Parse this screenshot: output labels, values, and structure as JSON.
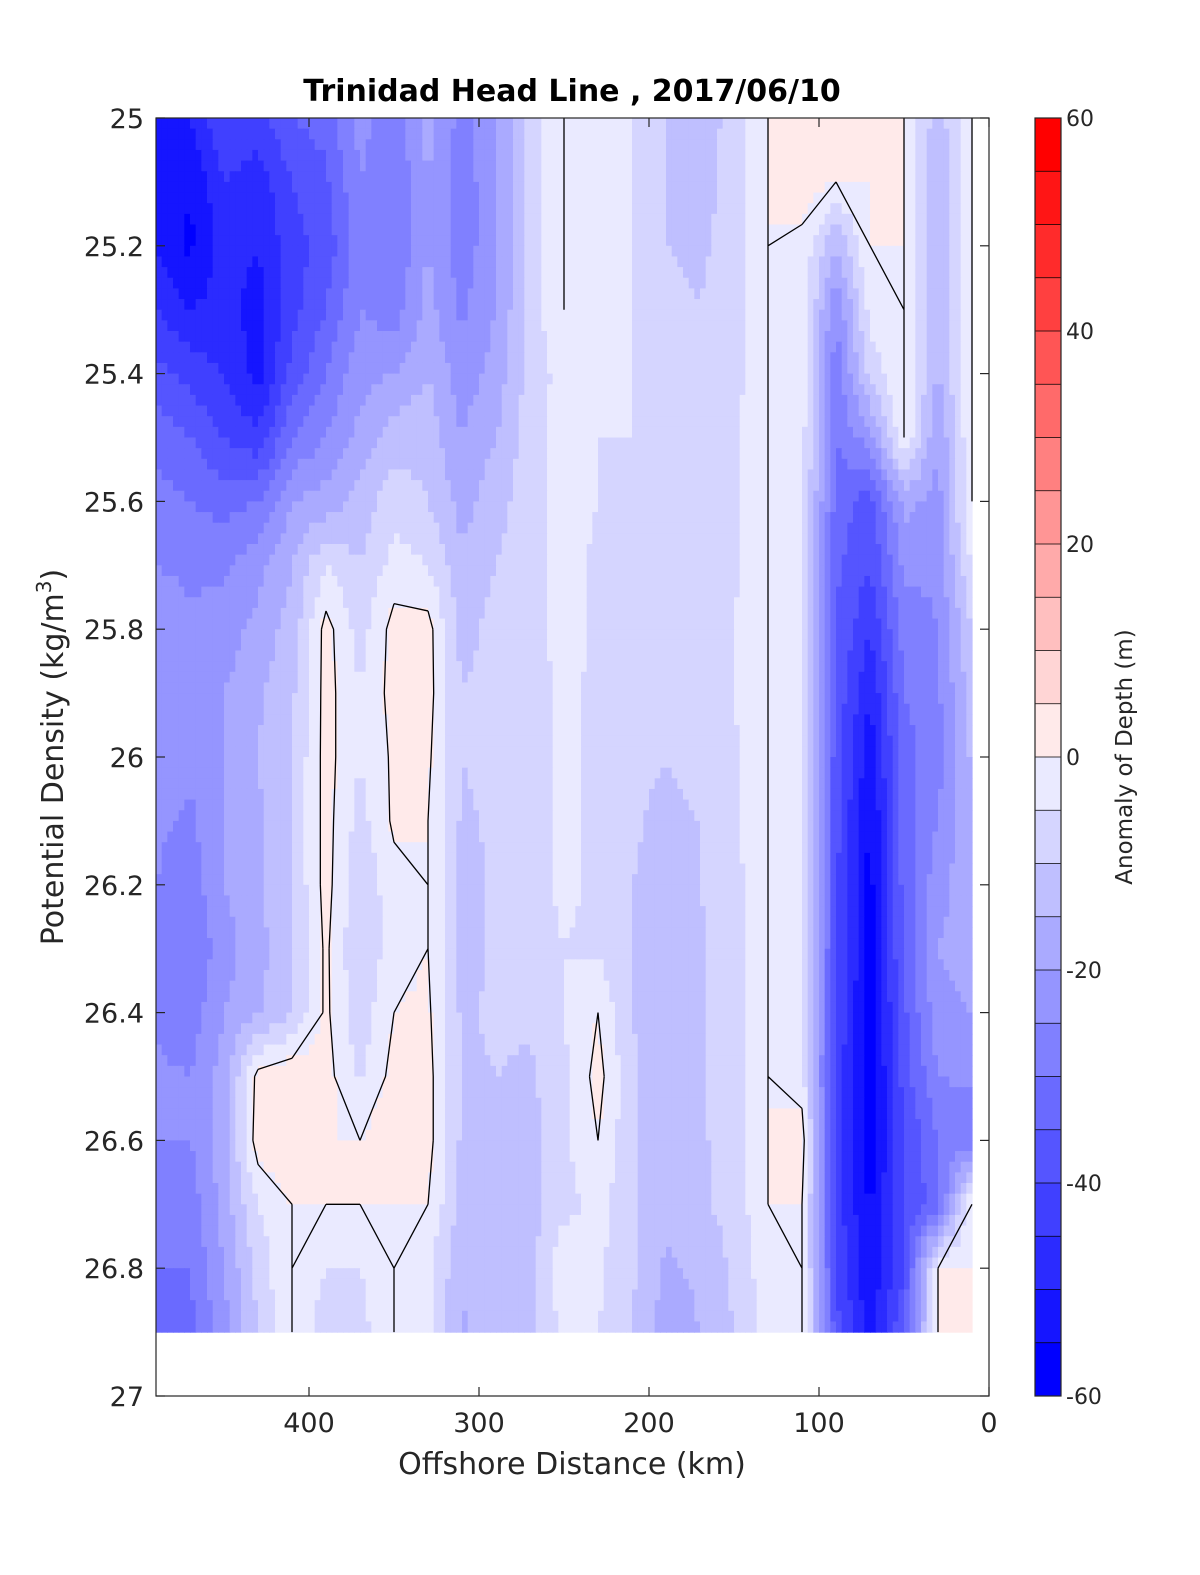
{
  "chart_data": {
    "type": "heatmap",
    "subtype": "filled contour section",
    "title": "Trinidad Head Line , 2017/06/10",
    "xlabel": "Offshore Distance (km)",
    "ylabel_main": "Potential Density (kg/m",
    "ylabel_sup": "3",
    "ylabel_close": ")",
    "xlim": [
      490,
      0
    ],
    "x_reversed": true,
    "ylim": [
      25,
      27
    ],
    "y_reversed": true,
    "x_ticks": [
      400,
      300,
      200,
      100,
      0
    ],
    "x_tick_labels": [
      "400",
      "300",
      "200",
      "100",
      "0"
    ],
    "y_ticks": [
      25,
      25.2,
      25.4,
      25.6,
      25.8,
      26,
      26.2,
      26.4,
      26.6,
      26.8,
      27
    ],
    "y_tick_labels": [
      "25",
      "25.2",
      "25.4",
      "25.6",
      "25.8",
      "26",
      "26.2",
      "26.4",
      "26.6",
      "26.8",
      "27"
    ],
    "data_max_density": 26.9,
    "colorbar": {
      "label": "Anomaly of Depth (m)",
      "range": [
        -60,
        60
      ],
      "step": 5,
      "ticks": [
        60,
        40,
        20,
        0,
        -20,
        -40,
        -60
      ],
      "tick_labels": [
        "60",
        "40",
        "20",
        "0",
        "-20",
        "-40",
        "-60"
      ],
      "color_min": "#0000ff",
      "color_mid": "#ffffff",
      "color_max": "#ff0000"
    },
    "zero_contour_color": "#000000",
    "distance_km": [
      490,
      470,
      450,
      430,
      410,
      390,
      370,
      350,
      330,
      310,
      290,
      270,
      250,
      230,
      210,
      190,
      170,
      150,
      130,
      110,
      90,
      70,
      50,
      30,
      10
    ],
    "density": [
      25,
      25.1,
      25.2,
      25.3,
      25.4,
      25.5,
      25.6,
      25.7,
      25.8,
      25.9,
      26,
      26.1,
      26.2,
      26.3,
      26.4,
      26.5,
      26.6,
      26.7,
      26.8,
      26.9
    ],
    "anomaly_m": [
      [
        -50,
        -50,
        -40,
        -42,
        -35,
        -33,
        -23,
        -28,
        -18,
        -27,
        -20,
        -8,
        0,
        -3,
        -5,
        -10,
        -13,
        -8,
        0,
        3,
        0,
        0,
        0,
        -13,
        0
      ],
      [
        -50,
        -55,
        -45,
        -48,
        -40,
        -36,
        -25,
        -30,
        -20,
        -28,
        -21,
        -8,
        0,
        -3,
        -5,
        -10,
        -12,
        -8,
        0,
        2,
        0,
        0,
        0,
        -15,
        0
      ],
      [
        -50,
        -56,
        -48,
        -50,
        -42,
        -38,
        -27,
        -30,
        -20,
        -28,
        -21,
        -8,
        0,
        -3,
        -5,
        -10,
        -11,
        -8,
        0,
        -1,
        -15,
        0,
        0,
        -16,
        0
      ],
      [
        -45,
        -50,
        -48,
        -52,
        -42,
        -35,
        -25,
        -28,
        -18,
        -26,
        -20,
        -8,
        0,
        -4,
        -5,
        -9,
        -10,
        -7,
        0,
        -1,
        -25,
        -3,
        0,
        -16,
        0
      ],
      [
        -38,
        -42,
        -45,
        -52,
        -38,
        -30,
        -22,
        -20,
        -15,
        -23,
        -18,
        -8,
        -3,
        -4,
        -5,
        -8,
        -9,
        -7,
        0,
        -2,
        -28,
        -8,
        0,
        -16,
        0
      ],
      [
        -32,
        -35,
        -40,
        -44,
        -30,
        -25,
        -18,
        -12,
        -12,
        -20,
        -15,
        -7,
        -3,
        -5,
        -5,
        -7,
        -8,
        -6,
        0,
        -3,
        -30,
        -22,
        0,
        -20,
        0
      ],
      [
        -28,
        -30,
        -32,
        -30,
        -20,
        -18,
        -13,
        -7,
        -10,
        -17,
        -12,
        -7,
        -3,
        -5,
        -6,
        -7,
        -7,
        -6,
        0,
        -3,
        -32,
        -38,
        -18,
        -22,
        0
      ],
      [
        -25,
        -26,
        -26,
        -22,
        -15,
        -5,
        -10,
        -3,
        -5,
        -14,
        -10,
        -7,
        -3,
        -6,
        -6,
        -7,
        -6,
        -6,
        0,
        -3,
        -34,
        -40,
        -24,
        -24,
        -4
      ],
      [
        -22,
        -24,
        -23,
        -18,
        -13,
        2,
        -7,
        2,
        2,
        -12,
        -8,
        -7,
        -3,
        -6,
        -6,
        -7,
        -6,
        -5,
        0,
        -3,
        -35,
        -45,
        -28,
        -25,
        -10
      ],
      [
        -20,
        -22,
        -20,
        -16,
        -11,
        2,
        -5,
        2,
        2,
        -10,
        -8,
        -7,
        -4,
        -6,
        -7,
        -8,
        -6,
        -5,
        0,
        -3,
        -36,
        -50,
        -30,
        -26,
        -12
      ],
      [
        -22,
        -24,
        -20,
        -15,
        -10,
        2,
        -5,
        1,
        1,
        -10,
        -8,
        -7,
        -4,
        -6,
        -8,
        -10,
        -8,
        -6,
        0,
        -3,
        -38,
        -53,
        -32,
        -27,
        -14
      ],
      [
        -24,
        -26,
        -20,
        -16,
        -10,
        2,
        -7,
        1,
        0,
        -11,
        -9,
        -7,
        -4,
        -6,
        -9,
        -12,
        -10,
        -6,
        0,
        -3,
        -38,
        -56,
        -33,
        -25,
        -15
      ],
      [
        -25,
        -28,
        -20,
        -16,
        -10,
        2,
        -9,
        -2,
        0,
        -12,
        -9,
        -7,
        -4,
        -6,
        -10,
        -13,
        -10,
        -7,
        0,
        -3,
        -39,
        -57,
        -33,
        -22,
        -16
      ],
      [
        -27,
        -30,
        -22,
        -17,
        -10,
        1,
        -10,
        -2,
        0,
        -12,
        -9,
        -8,
        -5,
        -6,
        -10,
        -14,
        -11,
        -7,
        0,
        -3,
        -39,
        -57,
        -34,
        -20,
        -18
      ],
      [
        -26,
        -28,
        -20,
        -16,
        -10,
        1,
        -8,
        0,
        1,
        -11,
        -9,
        -9,
        -5,
        0,
        -10,
        -14,
        -11,
        -7,
        0,
        -3,
        -40,
        -58,
        -36,
        -22,
        -20
      ],
      [
        -24,
        -25,
        -18,
        2,
        4,
        2,
        -6,
        2,
        2,
        -11,
        -10,
        -11,
        -6,
        2,
        -9,
        -14,
        -11,
        -7,
        0,
        -3,
        -41,
        -59,
        -38,
        -25,
        -24
      ],
      [
        -25,
        -25,
        -17,
        3,
        5,
        0,
        0,
        5,
        2,
        -11,
        -10,
        -12,
        -6,
        0,
        -9,
        -13,
        -11,
        -7,
        0,
        3,
        -42,
        -58,
        -40,
        -30,
        -28
      ],
      [
        -28,
        -28,
        -18,
        -5,
        0,
        0,
        0,
        0,
        0,
        -12,
        -11,
        -12,
        -7,
        -3,
        -9,
        -14,
        -11,
        -8,
        0,
        0,
        -42,
        -56,
        -40,
        -32,
        0
      ],
      [
        -30,
        -30,
        -20,
        -8,
        0,
        -5,
        -5,
        0,
        -4,
        -14,
        -11,
        -12,
        0,
        -4,
        -9,
        -16,
        -14,
        -9,
        -2,
        0,
        -40,
        -55,
        -40,
        0,
        0
      ],
      [
        -32,
        -32,
        -22,
        -10,
        0,
        -8,
        -7,
        0,
        -4,
        -16,
        -11,
        -12,
        -4,
        -5,
        -10,
        -18,
        -15,
        -10,
        -3,
        0,
        -38,
        -52,
        -35,
        0,
        0
      ]
    ]
  }
}
